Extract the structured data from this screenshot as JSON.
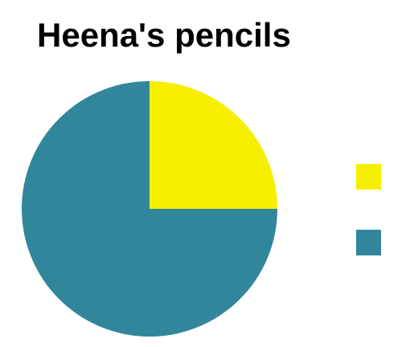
{
  "chart_data": {
    "type": "pie",
    "title": "Heena's pencils",
    "categories": [
      "",
      ""
    ],
    "values": [
      25,
      75
    ],
    "colors": [
      "#f7ef00",
      "#31869b"
    ],
    "start_angle_deg": 0,
    "direction": "clockwise",
    "legend_position": "right",
    "data_labels": false
  }
}
